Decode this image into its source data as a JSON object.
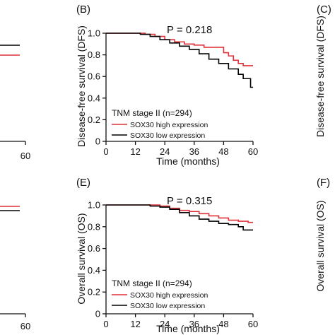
{
  "colors": {
    "high": "#e0303a",
    "low": "#000000",
    "axis": "#111111"
  },
  "chart_data": [
    {
      "type": "line",
      "panel": "(B)",
      "title": "P = 0.218",
      "xlabel": "Time (months)",
      "ylabel": "Disease-free survival (DFS)",
      "xlim": [
        0,
        60
      ],
      "ylim": [
        0,
        1.0
      ],
      "xticks": [
        "0",
        "12",
        "24",
        "36",
        "48",
        "60"
      ],
      "yticks": [
        "0",
        "0.2",
        "0.4",
        "0.6",
        "0.8",
        "1.0"
      ],
      "legend_title": "TNM stage II (n=294)",
      "legend_placement": "bottom-left",
      "series": [
        {
          "name": "SOX30 high expression",
          "color": "#e0303a",
          "x": [
            0,
            12,
            16,
            20,
            24,
            28,
            32,
            36,
            40,
            44,
            48,
            50,
            52,
            54,
            56,
            58,
            60
          ],
          "y": [
            1.0,
            1.0,
            0.99,
            0.97,
            0.94,
            0.92,
            0.9,
            0.89,
            0.87,
            0.87,
            0.82,
            0.79,
            0.75,
            0.72,
            0.7,
            0.7,
            0.7
          ]
        },
        {
          "name": "SOX30 low expression",
          "color": "#000000",
          "x": [
            0,
            10,
            14,
            18,
            22,
            26,
            30,
            34,
            38,
            42,
            46,
            50,
            54,
            56,
            58,
            59,
            60
          ],
          "y": [
            1.0,
            1.0,
            0.99,
            0.97,
            0.94,
            0.91,
            0.88,
            0.85,
            0.81,
            0.76,
            0.72,
            0.67,
            0.62,
            0.58,
            0.58,
            0.5,
            0.5
          ]
        }
      ]
    },
    {
      "type": "line",
      "panel": "(E)",
      "title": "P = 0.315",
      "xlabel": "Time (months)",
      "ylabel": "Overall survival (OS)",
      "xlim": [
        0,
        60
      ],
      "ylim": [
        0,
        1.0
      ],
      "xticks": [
        "0",
        "12",
        "24",
        "36",
        "48",
        "60"
      ],
      "yticks": [
        "0",
        "0.2",
        "0.4",
        "0.6",
        "0.8",
        "1.0"
      ],
      "legend_title": "TNM stage II (n=294)",
      "legend_placement": "bottom-left",
      "series": [
        {
          "name": "SOX30 high expression",
          "color": "#e0303a",
          "x": [
            0,
            12,
            18,
            22,
            26,
            30,
            34,
            38,
            42,
            46,
            50,
            54,
            58,
            60
          ],
          "y": [
            1.0,
            1.0,
            1.0,
            0.99,
            0.97,
            0.95,
            0.94,
            0.92,
            0.9,
            0.88,
            0.86,
            0.85,
            0.84,
            0.84
          ]
        },
        {
          "name": "SOX30 low expression",
          "color": "#000000",
          "x": [
            0,
            14,
            18,
            22,
            26,
            30,
            34,
            38,
            42,
            46,
            50,
            54,
            56,
            58,
            60
          ],
          "y": [
            1.0,
            1.0,
            0.99,
            0.98,
            0.96,
            0.93,
            0.9,
            0.87,
            0.85,
            0.83,
            0.82,
            0.8,
            0.77,
            0.77,
            0.77
          ]
        }
      ]
    }
  ],
  "partial": {
    "left_ticks": [
      "60",
      "60"
    ],
    "right_labels": [
      "(C)",
      "(F)"
    ],
    "right_ylabels": [
      "Disease-free survival (DFS)",
      "Overall survival (OS)"
    ]
  }
}
